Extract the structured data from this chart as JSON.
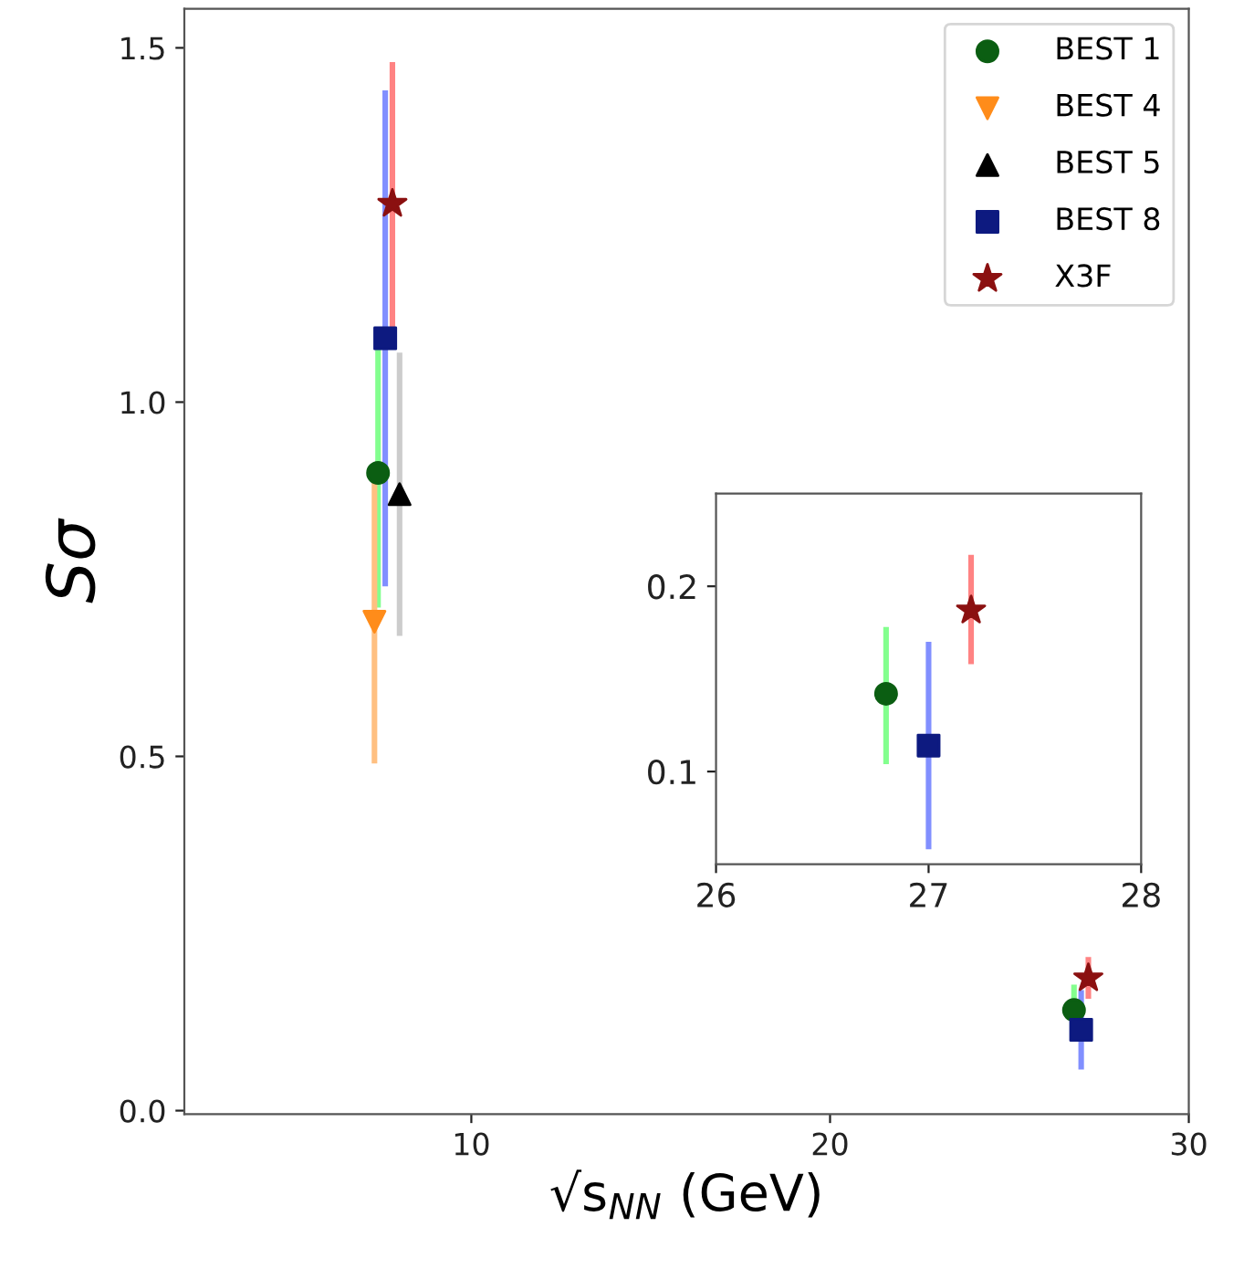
{
  "chart_data": [
    {
      "type": "scatter",
      "xlabel": "√s$_{NN}$ (GeV)",
      "ylabel": "Sσ",
      "xlim": [
        2,
        30
      ],
      "ylim": [
        -0.005,
        1.555
      ],
      "xticks": [
        10,
        20,
        30
      ],
      "yticks": [
        {
          "value": 0,
          "label": "0.0"
        },
        {
          "value": 0.5,
          "label": "0.5"
        },
        {
          "value": 1,
          "label": "1.0"
        },
        {
          "value": 1.5,
          "label": "1.5"
        }
      ],
      "grid": false,
      "legend": "top right",
      "series": [
        {
          "name": "BEST 1",
          "color": "#0b5e12",
          "marker": "circle",
          "x": [
            7.4,
            26.8
          ],
          "values": [
            0.9,
            0.142
          ],
          "errors": [
            [
              0.71,
              1.1
            ],
            [
              0.104,
              0.178
            ]
          ]
        },
        {
          "name": "BEST 4",
          "color": "#ff8c1a",
          "marker": "triangle_down",
          "x": [
            7.3
          ],
          "values": [
            0.69
          ],
          "errors": [
            [
              0.49,
              0.89
            ]
          ]
        },
        {
          "name": "BEST 5",
          "color": "#000000",
          "marker": "triangle",
          "x": [
            8.0
          ],
          "values": [
            0.87
          ],
          "errors": [
            [
              0.67,
              1.07
            ]
          ]
        },
        {
          "name": "BEST 8",
          "color": "#0d1a80",
          "marker": "square",
          "x": [
            7.6,
            27.0
          ],
          "values": [
            1.09,
            0.114
          ],
          "errors": [
            [
              0.74,
              1.44
            ],
            [
              0.058,
              0.17
            ]
          ]
        },
        {
          "name": "X3F",
          "color": "#8b1010",
          "marker": "star",
          "x": [
            7.8,
            27.2
          ],
          "values": [
            1.28,
            0.187
          ],
          "errors": [
            [
              1.08,
              1.48
            ],
            [
              0.158,
              0.217
            ]
          ]
        }
      ]
    },
    {
      "type": "scatter",
      "xlim": [
        26,
        28
      ],
      "ylim": [
        0.05,
        0.25
      ],
      "xticks": [
        26,
        27,
        28
      ],
      "yticks": [
        0.1,
        0.2
      ],
      "grid": false,
      "series": [
        {
          "color": "#0b5e12",
          "marker": "circle",
          "x": [
            26.8
          ],
          "values": [
            0.142
          ],
          "errors": [
            [
              0.104,
              0.178
            ]
          ]
        },
        {
          "color": "#0d1a80",
          "marker": "square",
          "x": [
            27.0
          ],
          "values": [
            0.114
          ],
          "errors": [
            [
              0.058,
              0.17
            ]
          ]
        },
        {
          "color": "#8b1010",
          "marker": "star",
          "x": [
            27.2
          ],
          "values": [
            0.187
          ],
          "errors": [
            [
              0.158,
              0.217
            ]
          ]
        }
      ]
    }
  ]
}
